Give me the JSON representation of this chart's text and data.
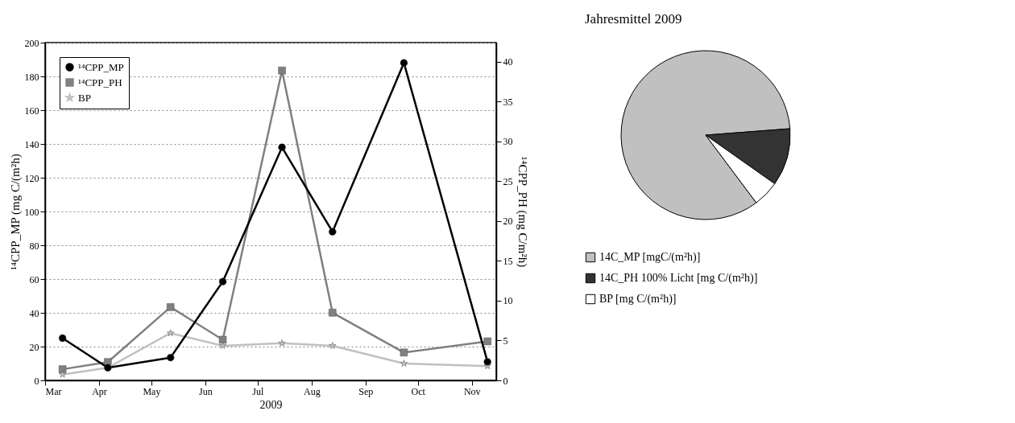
{
  "chart_data": [
    {
      "type": "line",
      "xlabel": "2009",
      "ylabel": "¹⁴CPP_MP (mg C/(m²h)",
      "y2label": "¹⁴CPP_PH (mg C/m²h)",
      "xlim": [
        "2009-03-01",
        "2009-11-15"
      ],
      "xticks": [
        {
          "value": "2009-03-01",
          "label": "Mar"
        },
        {
          "value": "2009-04-01",
          "label": "Apr"
        },
        {
          "value": "2009-05-01",
          "label": "May"
        },
        {
          "value": "2009-06-01",
          "label": "Jun"
        },
        {
          "value": "2009-07-01",
          "label": "Jul"
        },
        {
          "value": "2009-08-01",
          "label": "Aug"
        },
        {
          "value": "2009-09-01",
          "label": "Sep"
        },
        {
          "value": "2009-10-01",
          "label": "Oct"
        },
        {
          "value": "2009-11-01",
          "label": "Nov"
        }
      ],
      "x": [
        "2009-03-11",
        "2009-04-06",
        "2009-05-12",
        "2009-06-11",
        "2009-07-15",
        "2009-08-13",
        "2009-09-23",
        "2009-11-10"
      ],
      "ylim": [
        0,
        200
      ],
      "yticks": [
        0,
        20,
        40,
        60,
        80,
        100,
        120,
        140,
        160,
        180,
        200
      ],
      "y2lim": [
        0,
        42.4
      ],
      "y2ticks": [
        0,
        5,
        10,
        15,
        20,
        25,
        30,
        35,
        40
      ],
      "grid": "y",
      "legend": "top left",
      "line_style": "solid",
      "series": [
        {
          "name": "¹⁴CPP_MP",
          "color": "#000000",
          "marker": "circle",
          "values": [
            25,
            7.5,
            13.5,
            58.5,
            138,
            88,
            188,
            11
          ]
        },
        {
          "name": "¹⁴CPP_PH",
          "color": "#808080",
          "marker": "square",
          "axis": "y2",
          "values": [
            1.4,
            2.3,
            9.2,
            5.1,
            38.9,
            8.5,
            3.5,
            4.9
          ]
        },
        {
          "name": "BP",
          "color": "#c0c0c0",
          "marker": "star",
          "values": [
            3.5,
            7.5,
            28,
            20.5,
            22,
            20.5,
            10,
            8.5
          ]
        }
      ]
    },
    {
      "type": "pie",
      "title": "Jahresmittel 2009",
      "legend": "bottom",
      "categories": [
        "14C_MP [mgC/(m²h)]",
        "14C_PH 100% Licht [mg C/(m²h)]",
        "BP [mg C/(m²h)]"
      ],
      "values": [
        84,
        11,
        5
      ],
      "colors": [
        "#c0c0c0",
        "#333333",
        "#ffffff"
      ]
    }
  ]
}
